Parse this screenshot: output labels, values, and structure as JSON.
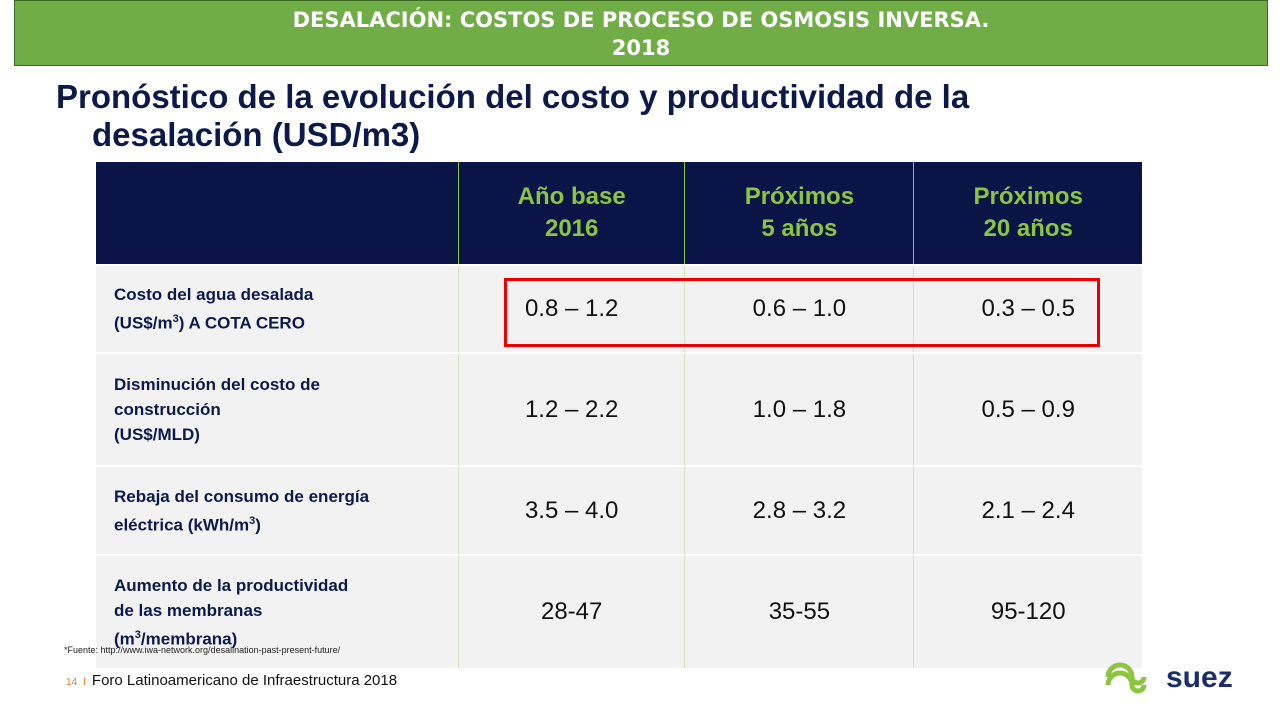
{
  "header": {
    "title": [
      "DESALACIÓN: COSTOS DE PROCESO DE OSMOSIS INVERSA.",
      "2018"
    ]
  },
  "heading": [
    "Pronóstico de la evolución del costo y productividad de la",
    "desalación (USD/m3)"
  ],
  "table": {
    "columns": [
      [
        "Año base",
        "2016"
      ],
      [
        "Próximos",
        "5 años"
      ],
      [
        "Próximos",
        "20 años"
      ]
    ],
    "rows": [
      {
        "label": [
          [
            "Costo del agua desalada"
          ],
          [
            "(US$/m",
            "3",
            ") A COTA CERO"
          ]
        ],
        "cells": [
          "0.8 – 1.2",
          "0.6 – 1.0",
          "0.3 – 0.5"
        ]
      },
      {
        "label": [
          [
            "Disminución del costo de"
          ],
          [
            "construcción"
          ],
          [
            "(US$/MLD)"
          ]
        ],
        "cells": [
          "1.2 – 2.2",
          "1.0 – 1.8",
          "0.5 – 0.9"
        ]
      },
      {
        "label": [
          [
            "Rebaja del consumo de energía"
          ],
          [
            "eléctrica (kWh/m",
            "3",
            ")"
          ]
        ],
        "cells": [
          "3.5 – 4.0",
          "2.8 – 3.2",
          "2.1 – 2.4"
        ]
      },
      {
        "label": [
          [
            "Aumento de la productividad"
          ],
          [
            "de las membranas"
          ],
          [
            "(m",
            "3",
            "/membrana)"
          ]
        ],
        "cells": [
          "28-47",
          "35-55",
          "95-120"
        ]
      }
    ]
  },
  "footnote": "*Fuente: http://www.iwa-network.org/desalination-past-present-future/",
  "footer": {
    "page": "14",
    "separator": "I",
    "text": "Foro Latinoamericano de Infraestructura 2018"
  },
  "logo": "suez"
}
